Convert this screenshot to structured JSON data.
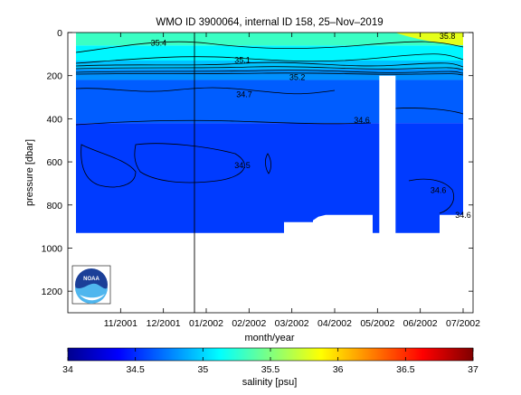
{
  "chart_data": {
    "type": "heatmap",
    "title": "WMO ID 3900064, internal ID 158, 25–Nov–2019",
    "xlabel": "month/year",
    "ylabel": "pressure [dbar]",
    "x_tick_labels": [
      "11/2001",
      "12/2001",
      "01/2002",
      "02/2002",
      "03/2002",
      "04/2002",
      "05/2002",
      "06/2002",
      "07/2002"
    ],
    "x_range": [
      "10/2001",
      "07/2002"
    ],
    "y_ticks": [
      0,
      200,
      400,
      600,
      800,
      1000,
      1200
    ],
    "y_range": [
      0,
      1300
    ],
    "y_reversed": true,
    "data_max_pressure": 930,
    "salinity_bands": [
      {
        "from": 0,
        "to": 60,
        "salinity": 35.3
      },
      {
        "from": 60,
        "to": 130,
        "salinity": 35.1
      },
      {
        "from": 130,
        "to": 170,
        "salinity": 34.95
      },
      {
        "from": 170,
        "to": 220,
        "salinity": 34.8
      },
      {
        "from": 220,
        "to": 420,
        "salinity": 34.65
      },
      {
        "from": 420,
        "to": 930,
        "salinity": 34.55
      }
    ],
    "high_salinity_patch": {
      "x_start": "05/2002",
      "x_end": "07/2002",
      "top": 0,
      "bottom": 60,
      "salinity": 35.8
    },
    "gap": {
      "x_start": "05/2002",
      "x_end": "06/2002",
      "top": 200,
      "bottom": 930
    },
    "marker_date": "01/2002",
    "contour_labels": [
      {
        "text": "35.4",
        "x": "11/2001",
        "y": 60
      },
      {
        "text": "35.8",
        "x": "06/2002",
        "y": 30
      },
      {
        "text": "35.1",
        "x": "01/2002",
        "y": 140
      },
      {
        "text": "35.2",
        "x": "03/2002",
        "y": 220
      },
      {
        "text": "34.7",
        "x": "01/2002",
        "y": 300
      },
      {
        "text": "34.6",
        "x": "04/2002",
        "y": 420
      },
      {
        "text": "34.5",
        "x": "01/2002",
        "y": 630
      },
      {
        "text": "34.6",
        "x": "06/2002",
        "y": 745
      },
      {
        "text": "34.6",
        "x": "07/2002",
        "y": 860
      }
    ],
    "colorbar": {
      "label": "salinity [psu]",
      "range": [
        34,
        37
      ],
      "tick_labels": [
        "34",
        "34.5",
        "35",
        "35.5",
        "36",
        "36.5",
        "37"
      ]
    },
    "logo": "NOAA"
  }
}
